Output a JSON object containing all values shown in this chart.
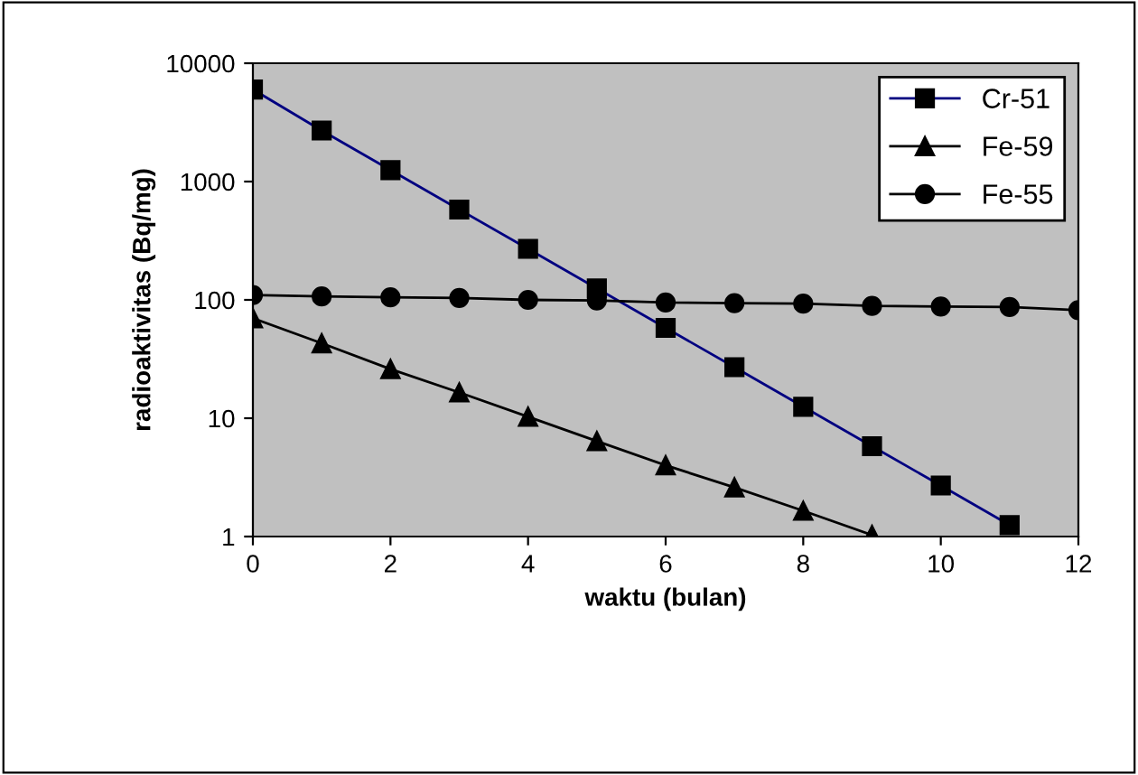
{
  "chart_data": {
    "type": "line",
    "xlabel": "waktu (bulan)",
    "ylabel": "radioaktivitas (Bq/mg)",
    "log": "y",
    "grid": false,
    "legend": "top right",
    "xlim": [
      0,
      12
    ],
    "xticks": [
      0,
      2,
      4,
      6,
      8,
      10,
      12
    ],
    "ylim": [
      1,
      10000
    ],
    "yticks": [
      1,
      10,
      100,
      1000,
      10000
    ],
    "series": [
      {
        "name": "Cr-51",
        "color": "#000080",
        "marker": "square",
        "x": [
          0,
          1,
          2,
          3,
          4,
          5,
          6,
          7,
          8,
          9,
          10,
          11
        ],
        "values": [
          6000,
          2700,
          1250,
          580,
          270,
          125,
          58,
          27,
          12.5,
          5.8,
          2.7,
          1.25
        ]
      },
      {
        "name": "Fe-59",
        "color": "#000000",
        "marker": "triangle",
        "x": [
          0,
          1,
          2,
          3,
          4,
          5,
          6,
          7,
          8,
          9
        ],
        "values": [
          70,
          43,
          26,
          16.5,
          10.3,
          6.4,
          4,
          2.6,
          1.65,
          1.03
        ]
      },
      {
        "name": "Fe-55",
        "color": "#000000",
        "marker": "circle",
        "x": [
          0,
          1,
          2,
          3,
          4,
          5,
          6,
          7,
          8,
          9,
          10,
          11,
          12
        ],
        "values": [
          110,
          107,
          105,
          104,
          100,
          99,
          95,
          94,
          93,
          89,
          88,
          87,
          82
        ]
      }
    ]
  }
}
